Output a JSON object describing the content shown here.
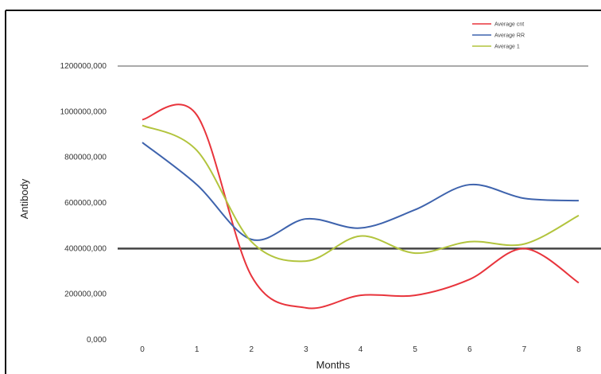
{
  "chart_data": {
    "type": "line",
    "title": "",
    "xlabel": "Months",
    "ylabel": "Antibody",
    "x": [
      0,
      1,
      2,
      3,
      4,
      5,
      6,
      7,
      8
    ],
    "x_tick_labels": [
      "0",
      "1",
      "2",
      "3",
      "4",
      "5",
      "6",
      "7",
      "8"
    ],
    "y_tick_labels": [
      "0,000",
      "200000,000",
      "400000,000",
      "600000,000",
      "800000,000",
      "1000000,000",
      "1200000,000"
    ],
    "ylim": [
      0,
      1200000
    ],
    "reference_line": 400000,
    "legend_position": "top-right",
    "grid": "top border line only",
    "series": [
      {
        "name": "Average cnt",
        "color": "#e8343c",
        "values": [
          965000,
          985000,
          280000,
          140000,
          195000,
          195000,
          265000,
          400000,
          250000
        ]
      },
      {
        "name": "Average RR",
        "color": "#3e63ad",
        "values": [
          865000,
          680000,
          440000,
          530000,
          490000,
          570000,
          680000,
          620000,
          610000
        ]
      },
      {
        "name": "Average 1",
        "color": "#b2c43d",
        "values": [
          940000,
          830000,
          430000,
          345000,
          455000,
          380000,
          430000,
          420000,
          545000
        ]
      }
    ]
  }
}
